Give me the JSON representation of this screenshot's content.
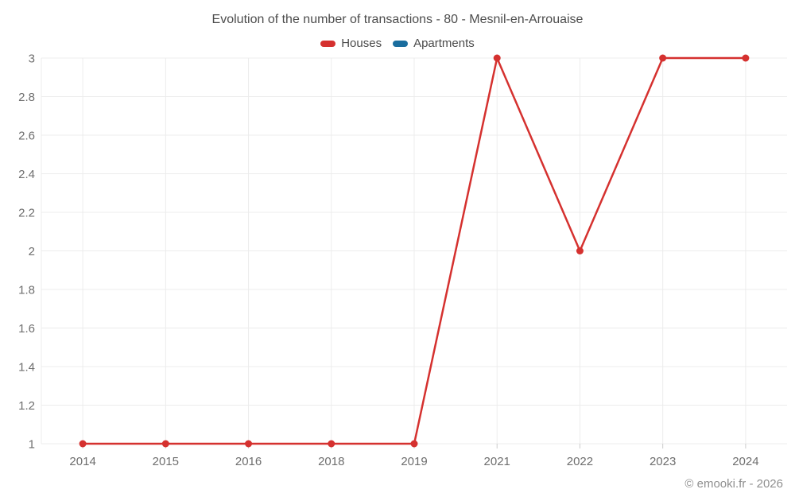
{
  "chart_data": {
    "type": "line",
    "title": "Evolution of the number of transactions - 80 - Mesnil-en-Arrouaise",
    "categories": [
      "2014",
      "2015",
      "2016",
      "2018",
      "2019",
      "2021",
      "2022",
      "2023",
      "2024"
    ],
    "series": [
      {
        "name": "Houses",
        "color": "#d5312f",
        "values": [
          1,
          1,
          1,
          1,
          1,
          3,
          2,
          3,
          3
        ]
      },
      {
        "name": "Apartments",
        "color": "#1a6d9e",
        "values": []
      }
    ],
    "ylim": [
      1,
      3
    ],
    "ytick_step": 0.2,
    "yticks": [
      1,
      1.2,
      1.4,
      1.6,
      1.8,
      2,
      2.2,
      2.4,
      2.6,
      2.8,
      3
    ],
    "grid": true,
    "legend_position": "top",
    "colors": {
      "grid": "#ececec",
      "axis_tick": "#cccccc",
      "tick_label": "#6e6e6e",
      "title_text": "#4d4d4d"
    }
  },
  "footer": {
    "copyright": "© emooki.fr - 2026"
  }
}
